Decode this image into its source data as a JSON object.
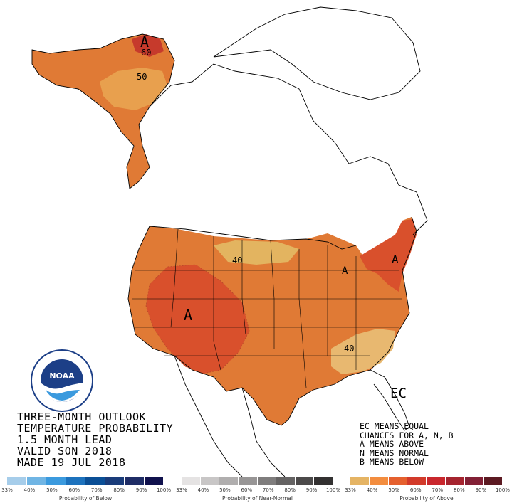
{
  "title_lines": [
    "THREE-MONTH OUTLOOK",
    "TEMPERATURE PROBABILITY",
    "1.5 MONTH LEAD",
    "VALID SON 2018",
    "MADE 19 JUL 2018"
  ],
  "legend_lines": [
    "EC MEANS EQUAL",
    "CHANCES FOR A, N, B",
    "A MEANS ABOVE",
    "N MEANS NORMAL",
    "B MEANS BELOW"
  ],
  "map_labels": {
    "alaska_A": "A",
    "alaska_60": "60",
    "alaska_50": "50",
    "conus_A": "A",
    "northern_plains_40": "40",
    "great_lakes_A": "A",
    "great_lakes_40": "40",
    "northeast_A": "A",
    "southeast_40": "40",
    "florida_EC": "EC"
  },
  "logo": {
    "text": "NOAA",
    "ring_text": "NATIONAL OCEANIC AND ATMOSPHERIC ADMINISTRATION · U.S. DEPARTMENT OF COMMERCE"
  },
  "scales": [
    {
      "caption": "Probability of Below",
      "ticks": [
        "33%",
        "40%",
        "50%",
        "60%",
        "70%",
        "80%",
        "90%",
        "100%"
      ],
      "colors": [
        "#a6cdea",
        "#70b5e4",
        "#3b9ade",
        "#1d72bd",
        "#0b4f96",
        "#1a3c7a",
        "#1f2d66",
        "#10114d"
      ]
    },
    {
      "caption": "Probability of Near-Normal",
      "ticks": [
        "33%",
        "40%",
        "50%",
        "60%",
        "70%",
        "80%",
        "90%",
        "100%"
      ],
      "colors": [
        "#e5e3e3",
        "#c8c6c6",
        "#b0aeae",
        "#979595",
        "#7f7d7d",
        "#656363",
        "#4c4a4a",
        "#333131"
      ]
    },
    {
      "caption": "Probability of Above",
      "ticks": [
        "33%",
        "40%",
        "50%",
        "60%",
        "70%",
        "80%",
        "90%",
        "100%"
      ],
      "colors": [
        "#e5b464",
        "#f38d3f",
        "#e5602e",
        "#d23a2a",
        "#c9272d",
        "#a5242f",
        "#822035",
        "#5c1a22"
      ]
    }
  ],
  "colors": {
    "prob_33_40": "#e8a04e",
    "prob_40_50": "#e07a35",
    "prob_50_60": "#d9502c",
    "prob_60_70": "#c63a2c",
    "near_normal_40": "#e3b460",
    "border": "#000000"
  }
}
